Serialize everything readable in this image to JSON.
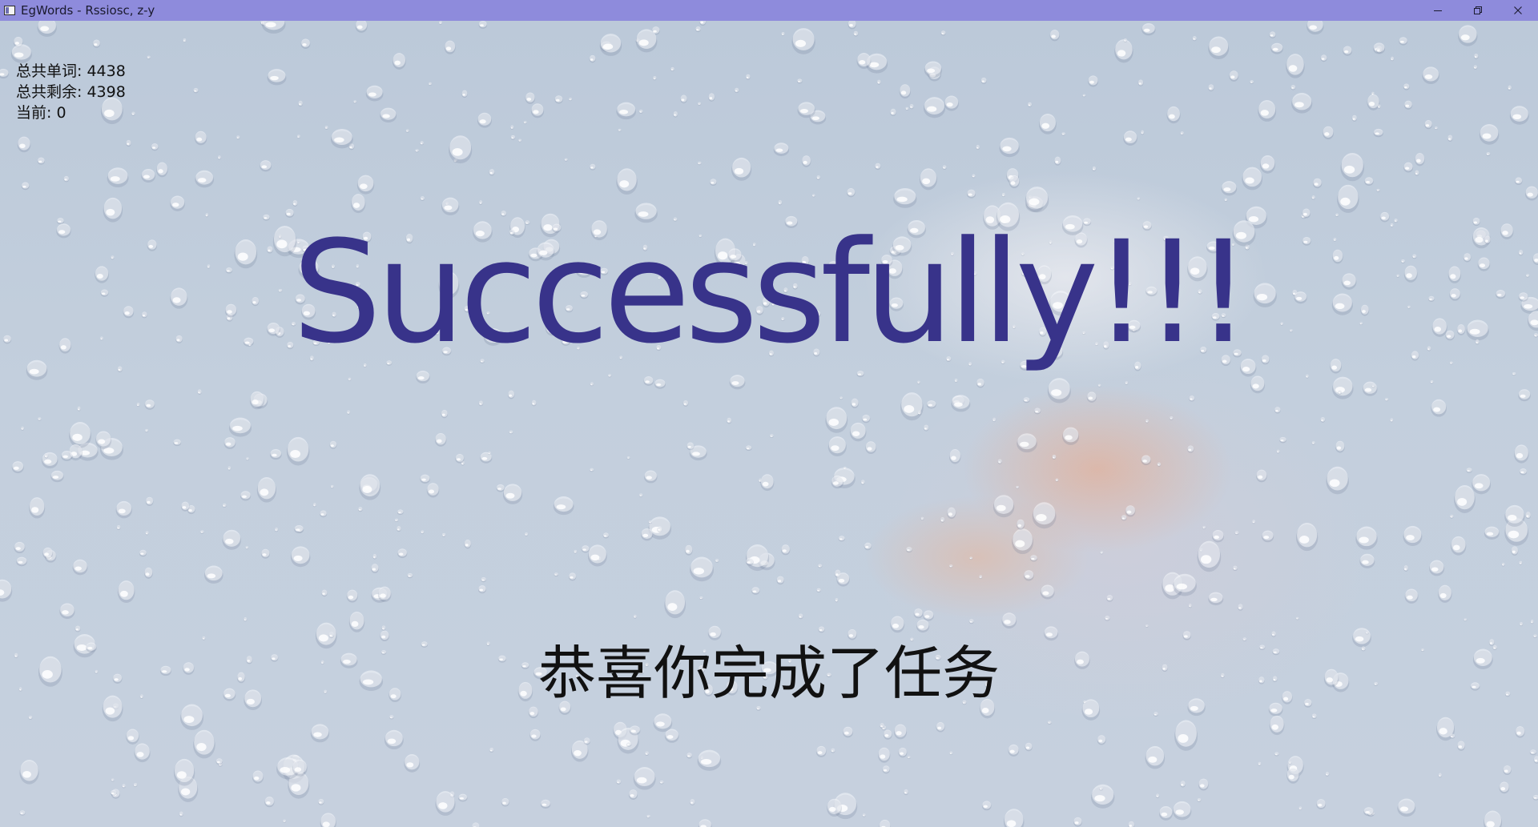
{
  "window": {
    "title": "EgWords - Rssiosc, z-y",
    "controls": {
      "minimize_icon": "minimize-icon",
      "restore_icon": "restore-icon",
      "close_icon": "close-icon"
    }
  },
  "stats": {
    "total_words": "总共单词: 4438",
    "total_remaining": "总共剩余: 4398",
    "current": "当前: 0"
  },
  "main": {
    "headline": "Successfully!!!",
    "message": "恭喜你完成了任务"
  },
  "colors": {
    "titlebar": "#8e8bdc",
    "headline": "#38338a",
    "message": "#111111",
    "background": "#c3cfdd"
  }
}
